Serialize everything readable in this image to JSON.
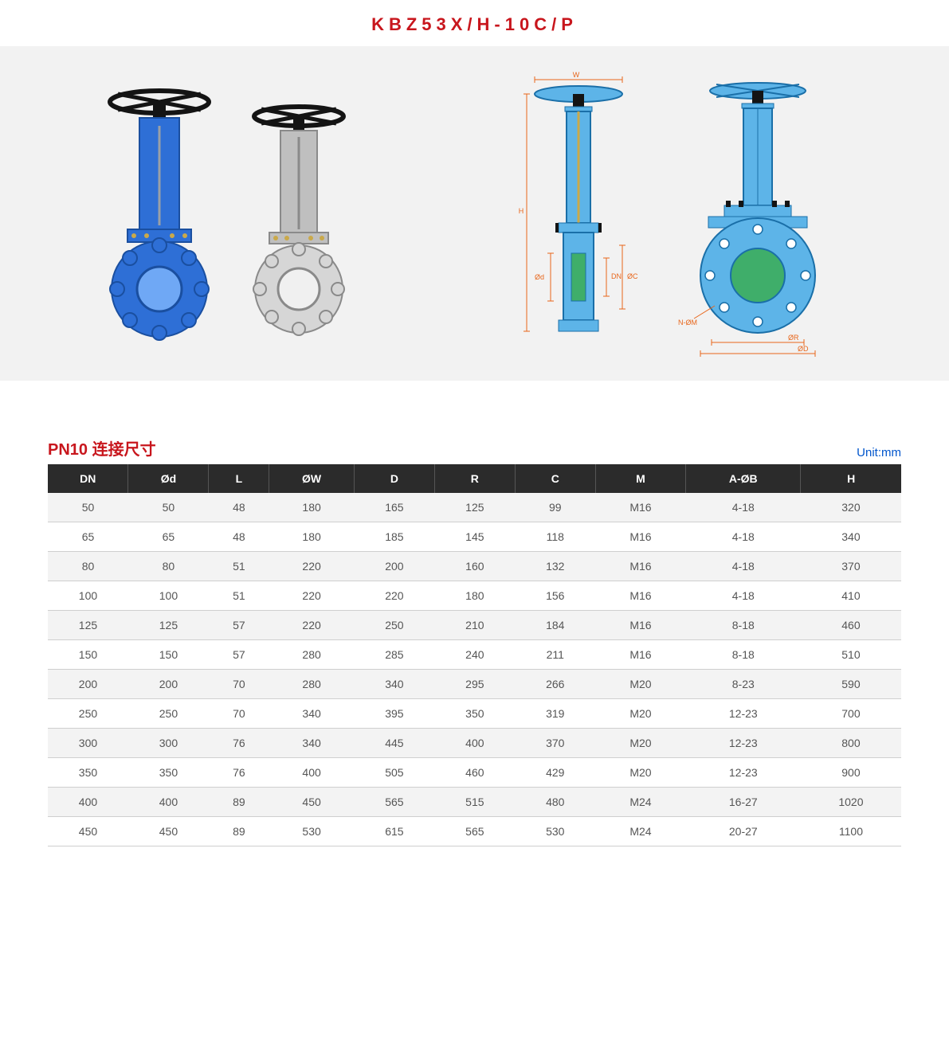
{
  "title": "KBZ53X/H-10C/P",
  "colors": {
    "title": "#c8161d",
    "panel_bg": "#f2f2f2",
    "table_header_bg": "#2b2b2b",
    "table_header_fg": "#ffffff",
    "row_odd_bg": "#f3f3f3",
    "row_even_bg": "#ffffff",
    "border": "#cfcfcf",
    "unit_text": "#0055cc",
    "valve_blue": "#2e6fd6",
    "valve_light": "#6fa8f5",
    "valve_silver": "#bfbfbf",
    "handwheel": "#141414",
    "tech_blue": "#5db4e8",
    "tech_stroke": "#1a6fa8",
    "dim_orange": "#e8661b",
    "gate_green": "#3fae6a"
  },
  "diagrams": {
    "dim_labels": [
      "W",
      "H",
      "Ød",
      "DN",
      "ØC",
      "N-ØM",
      "ØR",
      "ØD"
    ]
  },
  "table": {
    "title": "PN10 连接尺寸",
    "unit": "Unit:mm",
    "columns": [
      "DN",
      "Ød",
      "L",
      "ØW",
      "D",
      "R",
      "C",
      "M",
      "A-ØB",
      "H"
    ],
    "rows": [
      [
        "50",
        "50",
        "48",
        "180",
        "165",
        "125",
        "99",
        "M16",
        "4-18",
        "320"
      ],
      [
        "65",
        "65",
        "48",
        "180",
        "185",
        "145",
        "118",
        "M16",
        "4-18",
        "340"
      ],
      [
        "80",
        "80",
        "51",
        "220",
        "200",
        "160",
        "132",
        "M16",
        "4-18",
        "370"
      ],
      [
        "100",
        "100",
        "51",
        "220",
        "220",
        "180",
        "156",
        "M16",
        "4-18",
        "410"
      ],
      [
        "125",
        "125",
        "57",
        "220",
        "250",
        "210",
        "184",
        "M16",
        "8-18",
        "460"
      ],
      [
        "150",
        "150",
        "57",
        "280",
        "285",
        "240",
        "211",
        "M16",
        "8-18",
        "510"
      ],
      [
        "200",
        "200",
        "70",
        "280",
        "340",
        "295",
        "266",
        "M20",
        "8-23",
        "590"
      ],
      [
        "250",
        "250",
        "70",
        "340",
        "395",
        "350",
        "319",
        "M20",
        "12-23",
        "700"
      ],
      [
        "300",
        "300",
        "76",
        "340",
        "445",
        "400",
        "370",
        "M20",
        "12-23",
        "800"
      ],
      [
        "350",
        "350",
        "76",
        "400",
        "505",
        "460",
        "429",
        "M20",
        "12-23",
        "900"
      ],
      [
        "400",
        "400",
        "89",
        "450",
        "565",
        "515",
        "480",
        "M24",
        "16-27",
        "1020"
      ],
      [
        "450",
        "450",
        "89",
        "530",
        "615",
        "565",
        "530",
        "M24",
        "20-27",
        "1100"
      ]
    ]
  }
}
